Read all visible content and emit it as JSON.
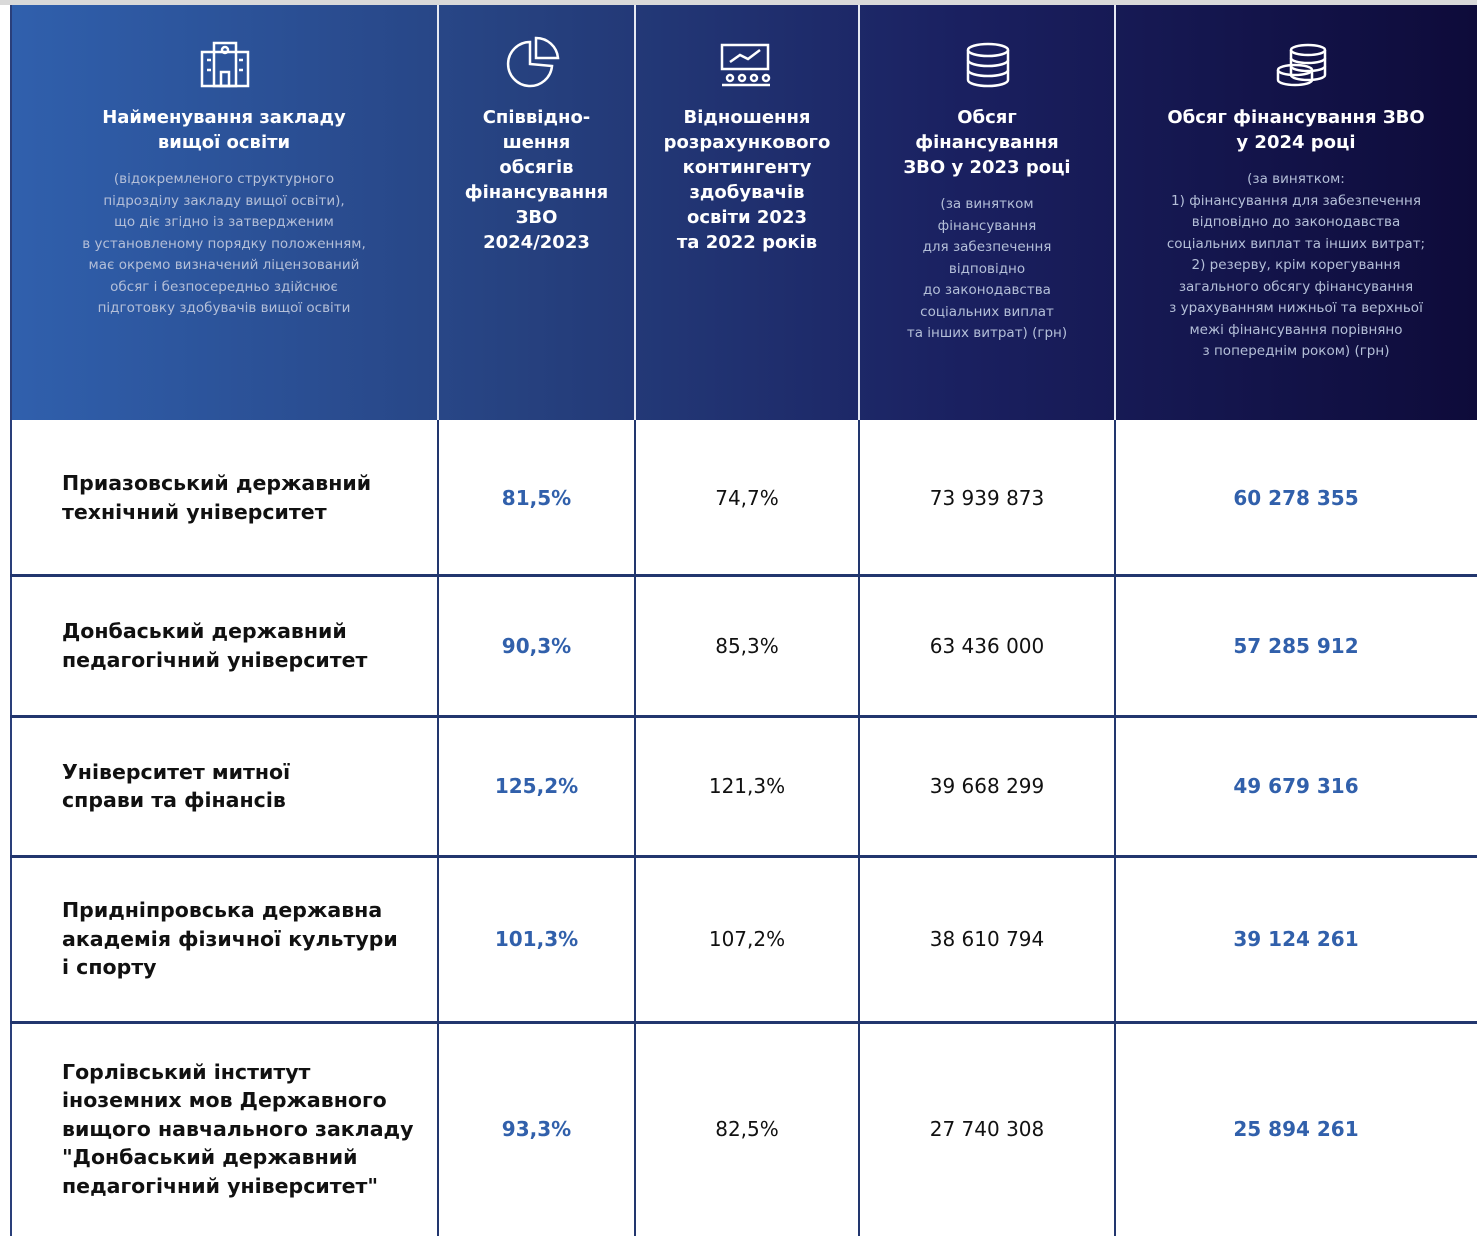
{
  "table": {
    "header": [
      {
        "title": "Найменування закладу\nвищої освіти",
        "note": "(відокремленого структурного\nпідрозділу закладу вищої освіти),\nщо діє згідно із затвердженим\nв установленому порядку положенням,\nмає окремо визначений ліцензований\nобсяг і безпосередньо здійснює\nпідготовку здобувачів вищої освіти"
      },
      {
        "title": "Співвідно-\nшення\nобсягів\nфінансування\nЗВО\n2024/2023"
      },
      {
        "title": "Відношення\nрозрахункового\nконтингенту\nздобувачів\nосвіти 2023\nта 2022 років"
      },
      {
        "title": "Обсяг\nфінансування\nЗВО у 2023 році",
        "note": "(за винятком\nфінансування\nдля забезпечення\nвідповідно\nдо законодавства\nсоціальних виплат\nта інших витрат) (грн)"
      },
      {
        "title": "Обсяг фінансування ЗВО\nу 2024 році",
        "note": "(за винятком:\n1) фінансування для забезпечення\nвідповідно до законодавства\nсоціальних виплат та інших витрат;\n2) резерву, крім корегування\nзагального обсягу фінансування\nз урахуванням нижньої та верхньої\nмежі фінансування порівняно\nз попереднім роком) (грн)"
      }
    ],
    "rows": [
      [
        "Приазовський державний\nтехнічний університет",
        "81,5%",
        "74,7%",
        "73 939 873",
        "60 278 355"
      ],
      [
        "Донбаський державний\nпедагогічний університет",
        "90,3%",
        "85,3%",
        "63 436 000",
        "57 285 912"
      ],
      [
        "Університет митної\nсправи та фінансів",
        "125,2%",
        "121,3%",
        "39 668 299",
        "49 679 316"
      ],
      [
        "Придніпровська державна\nакадемія фізичної культури\nі спорту",
        "101,3%",
        "107,2%",
        "38 610 794",
        "39 124 261"
      ],
      [
        "Горлівський інститут\nіноземних мов Державного\nвищого навчального закладу\n\"Донбаський державний\nпедагогічний університет\"",
        "93,3%",
        "82,5%",
        "27 740 308",
        "25 894 261"
      ]
    ]
  }
}
